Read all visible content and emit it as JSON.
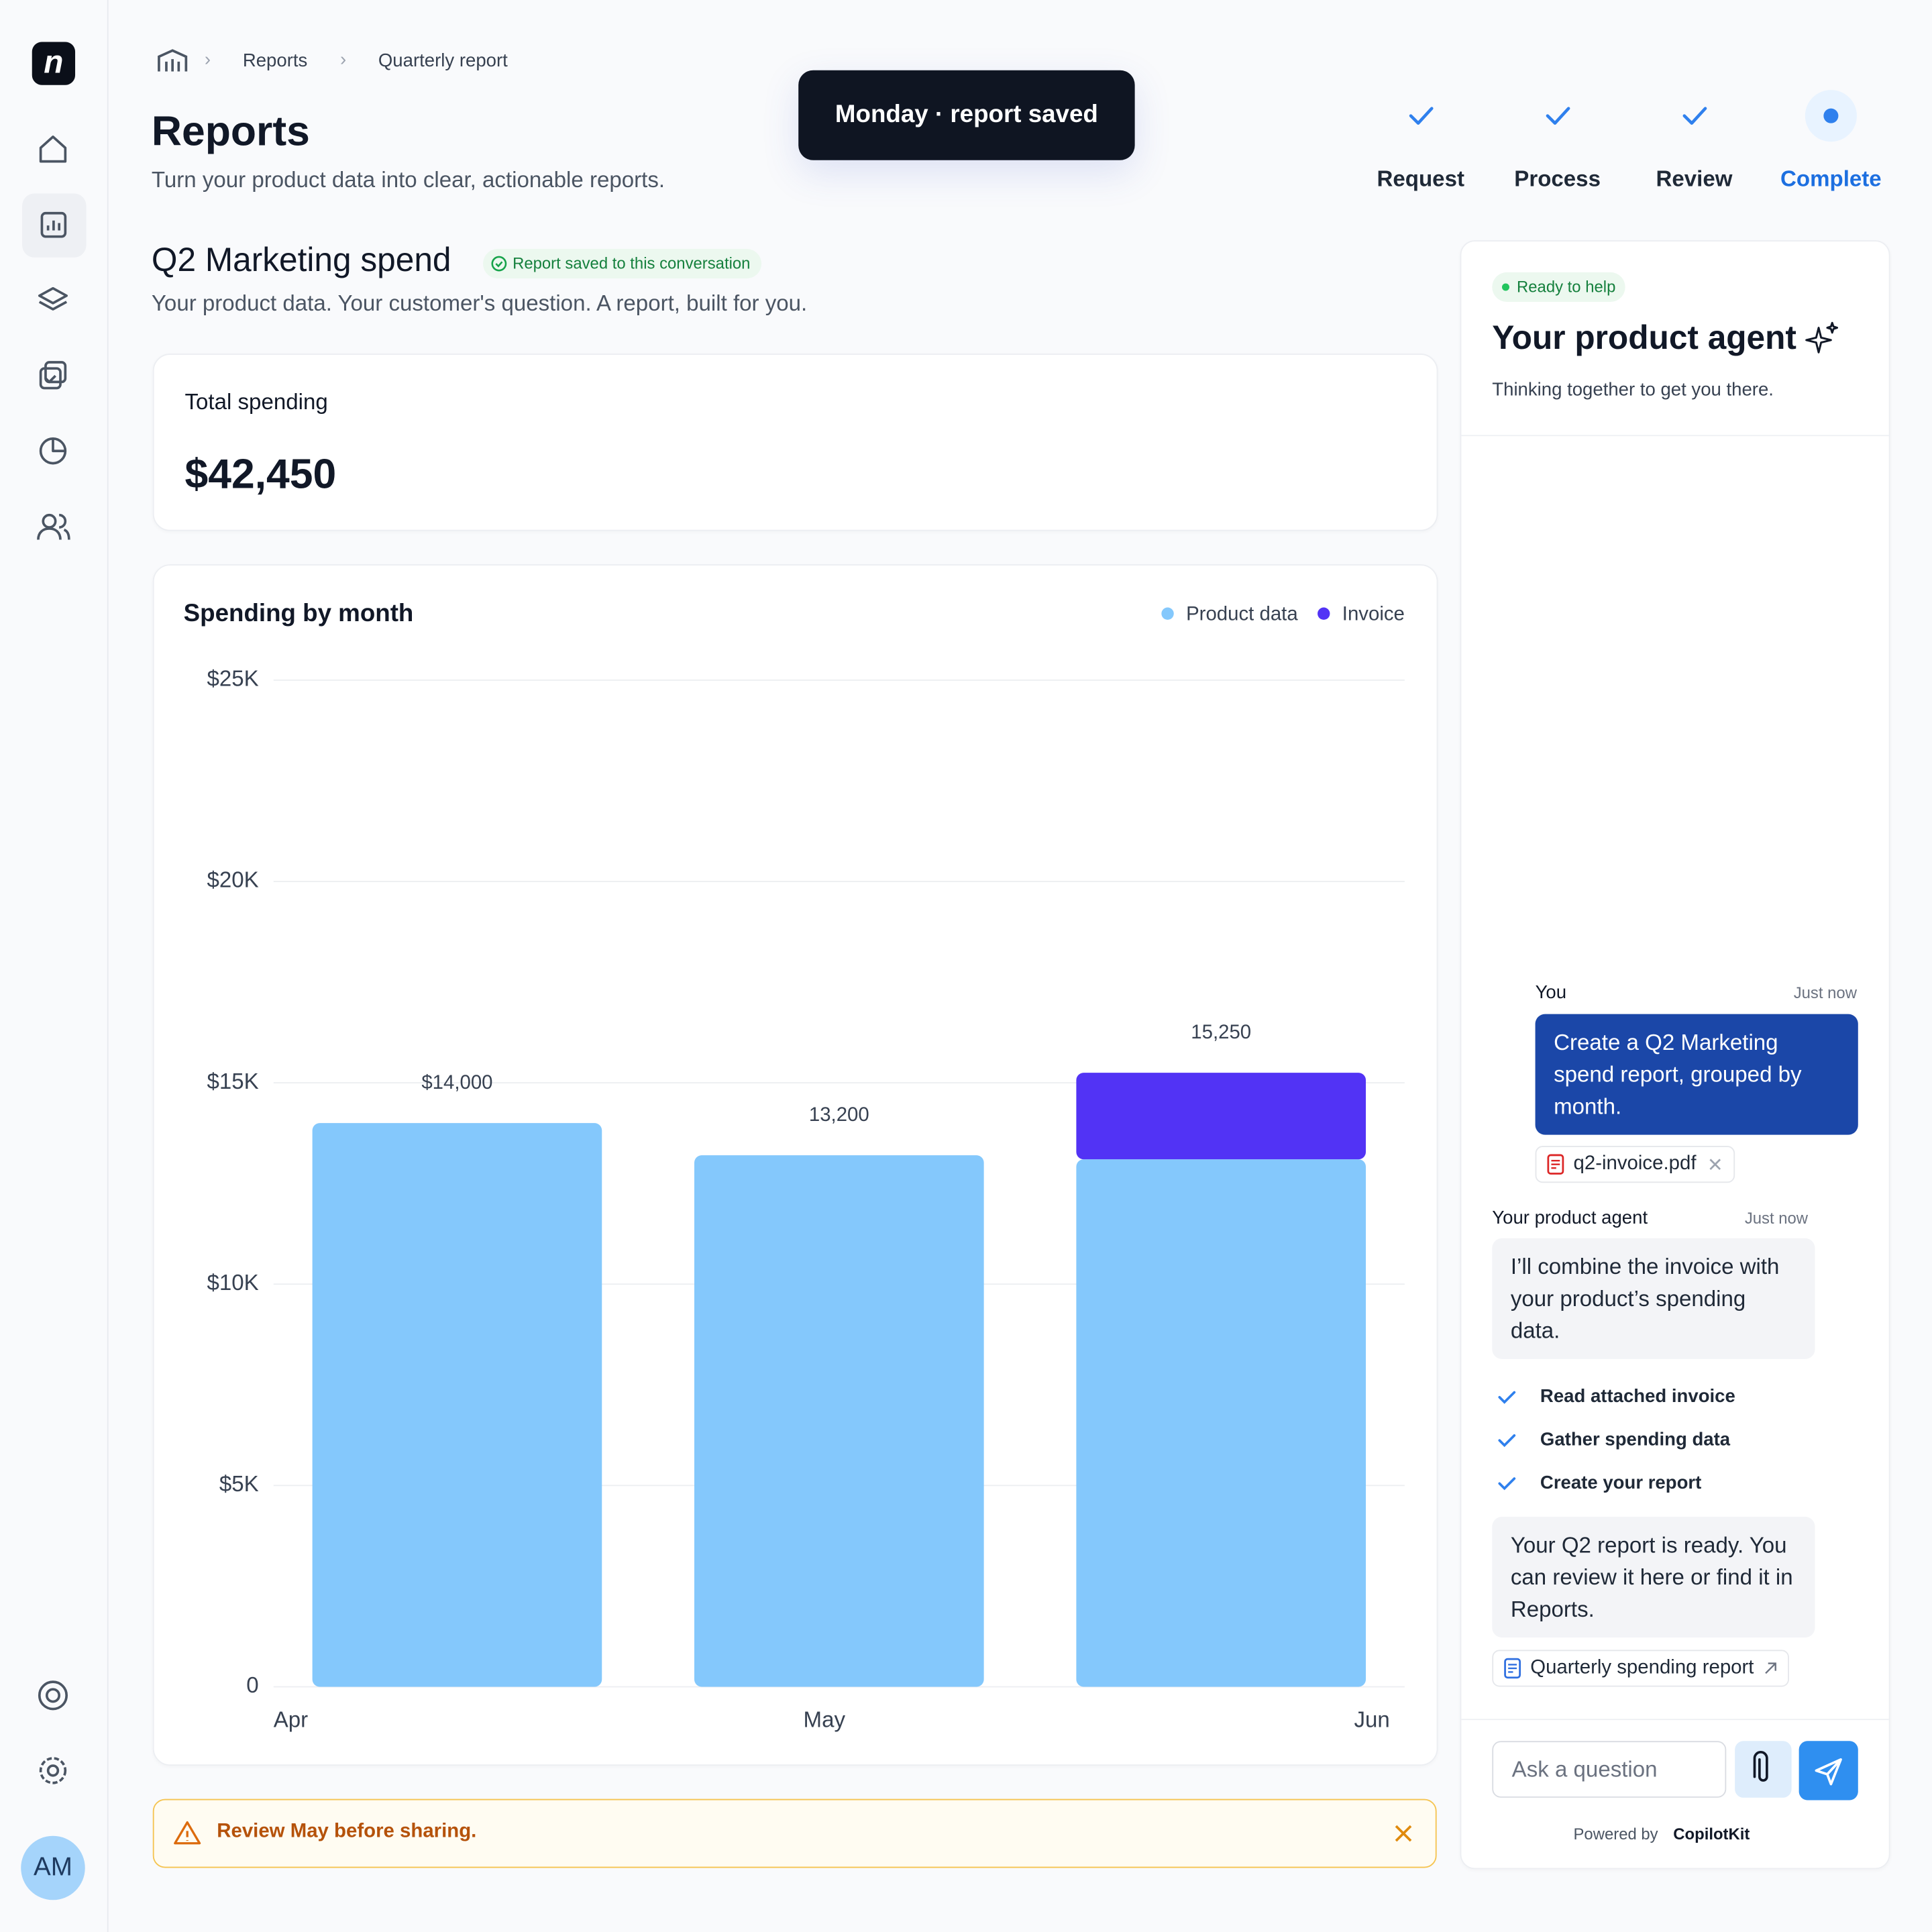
{
  "sidebar": {
    "logo": "n",
    "avatar": "AM"
  },
  "breadcrumb": [
    "Reports",
    "Quarterly report"
  ],
  "header": {
    "title": "Reports",
    "subtitle": "Turn your product data into clear, actionable reports."
  },
  "toast": "Monday · report saved",
  "steps": [
    "Request",
    "Process",
    "Review",
    "Complete"
  ],
  "report": {
    "title": "Q2 Marketing spend",
    "badge": "Report saved to this conversation",
    "subtitle": "Your product data. Your customer's question. A report, built for you.",
    "total_label": "Total spending",
    "total": "$42,450"
  },
  "chart_data": {
    "type": "bar",
    "stacked": true,
    "title": "Spending by month",
    "categories": [
      "Apr",
      "May",
      "Jun"
    ],
    "series": [
      {
        "name": "Product data",
        "color": "#84c8fc",
        "values": [
          14000,
          13200,
          13100
        ]
      },
      {
        "name": "Invoice",
        "color": "#5233f5",
        "values": [
          0,
          0,
          2150
        ]
      }
    ],
    "stack_totals": {
      "values": [
        14000,
        13200,
        15250
      ],
      "value_labels": [
        "$14,000",
        "13,200",
        "15,250"
      ]
    },
    "ylim": [
      0,
      25000
    ],
    "yticks": [
      0,
      {
        "value": 5000,
        "label": "$5K"
      },
      {
        "value": 10000,
        "label": "$10K"
      },
      {
        "value": 15000,
        "label": "$15K"
      },
      {
        "value": 20000,
        "label": "$20K"
      },
      {
        "value": 25000,
        "label": "$25K"
      }
    ],
    "grid": true,
    "legend": "top-right"
  },
  "alert": "Review May before sharing.",
  "agent": {
    "status": "Ready to help",
    "title": "Your product agent",
    "subtitle": "Thinking together to get you there.",
    "user": {
      "name": "You",
      "time": "Just now",
      "text": "Create a Q2 Marketing spend report, grouped by month.",
      "attachment": "q2-invoice.pdf"
    },
    "reply": {
      "name": "Your product agent",
      "time": "Just now",
      "text": "I’ll combine the invoice with your product’s spending data."
    },
    "tasks": [
      "Read attached invoice",
      "Gather spending data",
      "Create your report"
    ],
    "done": "Your Q2 report is ready. You can review it here or find it in Reports.",
    "link": "Quarterly spending report",
    "input": "Ask a question",
    "powered": "Powered by",
    "brand": "CopilotKit"
  }
}
